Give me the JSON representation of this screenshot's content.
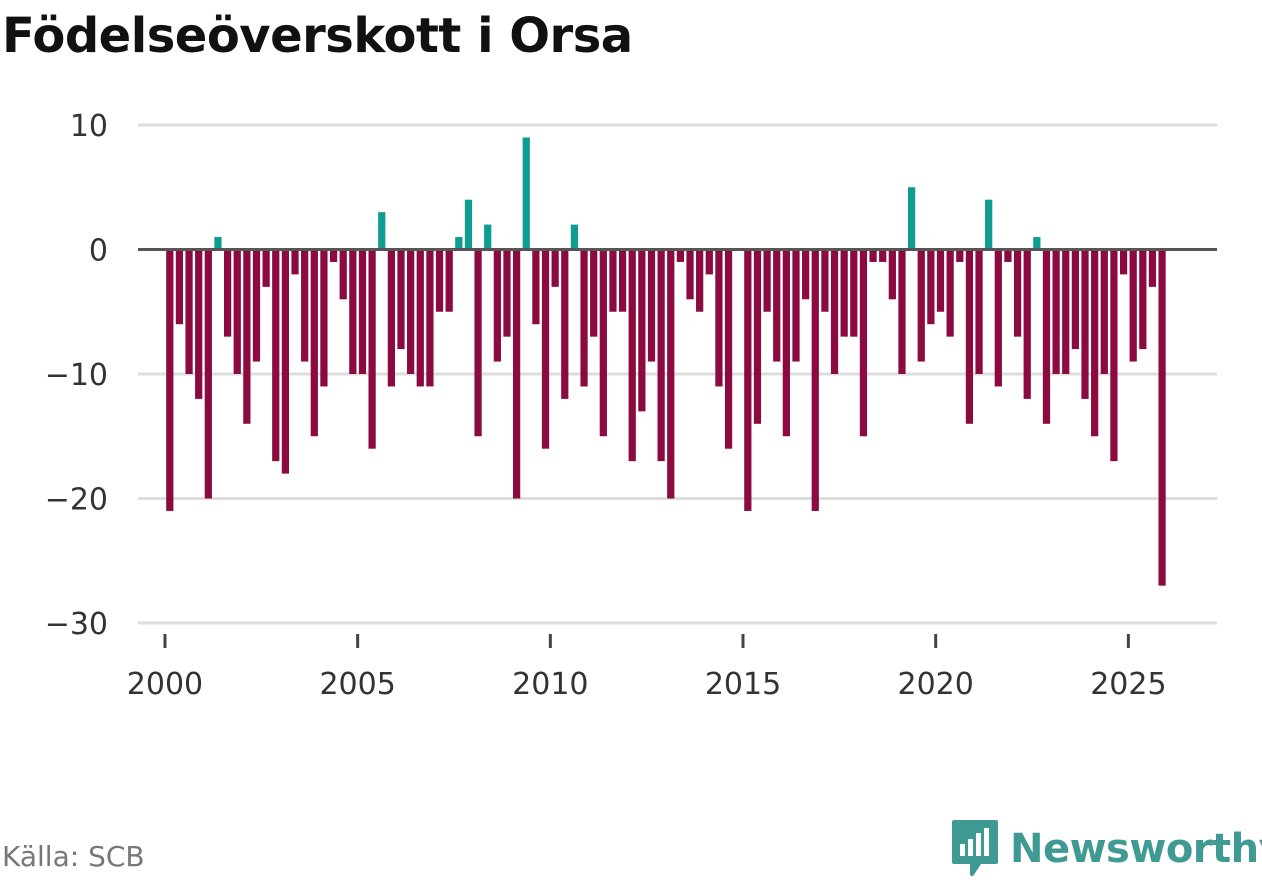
{
  "chart_data": {
    "type": "bar",
    "title": "Födelseöverskott i Orsa",
    "xlabel": "",
    "ylabel": "",
    "x_start": 2000,
    "points_per_year": 4,
    "ylim": [
      -30,
      10
    ],
    "xlim": [
      1999.3,
      2027.3
    ],
    "y_ticks": [
      10,
      0,
      -10,
      -20,
      -30
    ],
    "y_tick_labels": [
      "10",
      "0",
      "−10",
      "−20",
      "−30"
    ],
    "x_ticks": [
      2000,
      2005,
      2010,
      2015,
      2020,
      2025
    ],
    "x_tick_labels": [
      "2000",
      "2005",
      "2010",
      "2015",
      "2020",
      "2025"
    ],
    "grid": true,
    "legend": "none",
    "positive_color": "#0f9c91",
    "negative_color": "#8b0a3f",
    "values": [
      -21,
      -6,
      -10,
      -12,
      -20,
      1,
      -7,
      -10,
      -14,
      -9,
      -3,
      -17,
      -18,
      -2,
      -9,
      -15,
      -11,
      -1,
      -4,
      -10,
      -10,
      -16,
      3,
      -11,
      -8,
      -10,
      -11,
      -11,
      -5,
      -5,
      1,
      4,
      -15,
      2,
      -9,
      -7,
      -20,
      9,
      -6,
      -16,
      -3,
      -12,
      2,
      -11,
      -7,
      -15,
      -5,
      -5,
      -17,
      -13,
      -9,
      -17,
      -20,
      -1,
      -4,
      -5,
      -2,
      -11,
      -16,
      0,
      -21,
      -14,
      -5,
      -9,
      -15,
      -9,
      -4,
      -21,
      -5,
      -10,
      -7,
      -7,
      -15,
      -1,
      -1,
      -4,
      -10,
      5,
      -9,
      -6,
      -5,
      -7,
      -1,
      -14,
      -10,
      4,
      -11,
      -1,
      -7,
      -12,
      1,
      -14,
      -10,
      -10,
      -8,
      -12,
      -15,
      -10,
      -17,
      -2,
      -9,
      -8,
      -3,
      -27
    ]
  },
  "source": "Källa: SCB",
  "brand": {
    "name": "Newsworthy",
    "logo_icon": "bar-chart-speech-bubble-icon",
    "color": "#3f9a93"
  },
  "colors": {
    "grid": "#dddddd",
    "zero_line": "#555555",
    "axis_text": "#333333"
  }
}
